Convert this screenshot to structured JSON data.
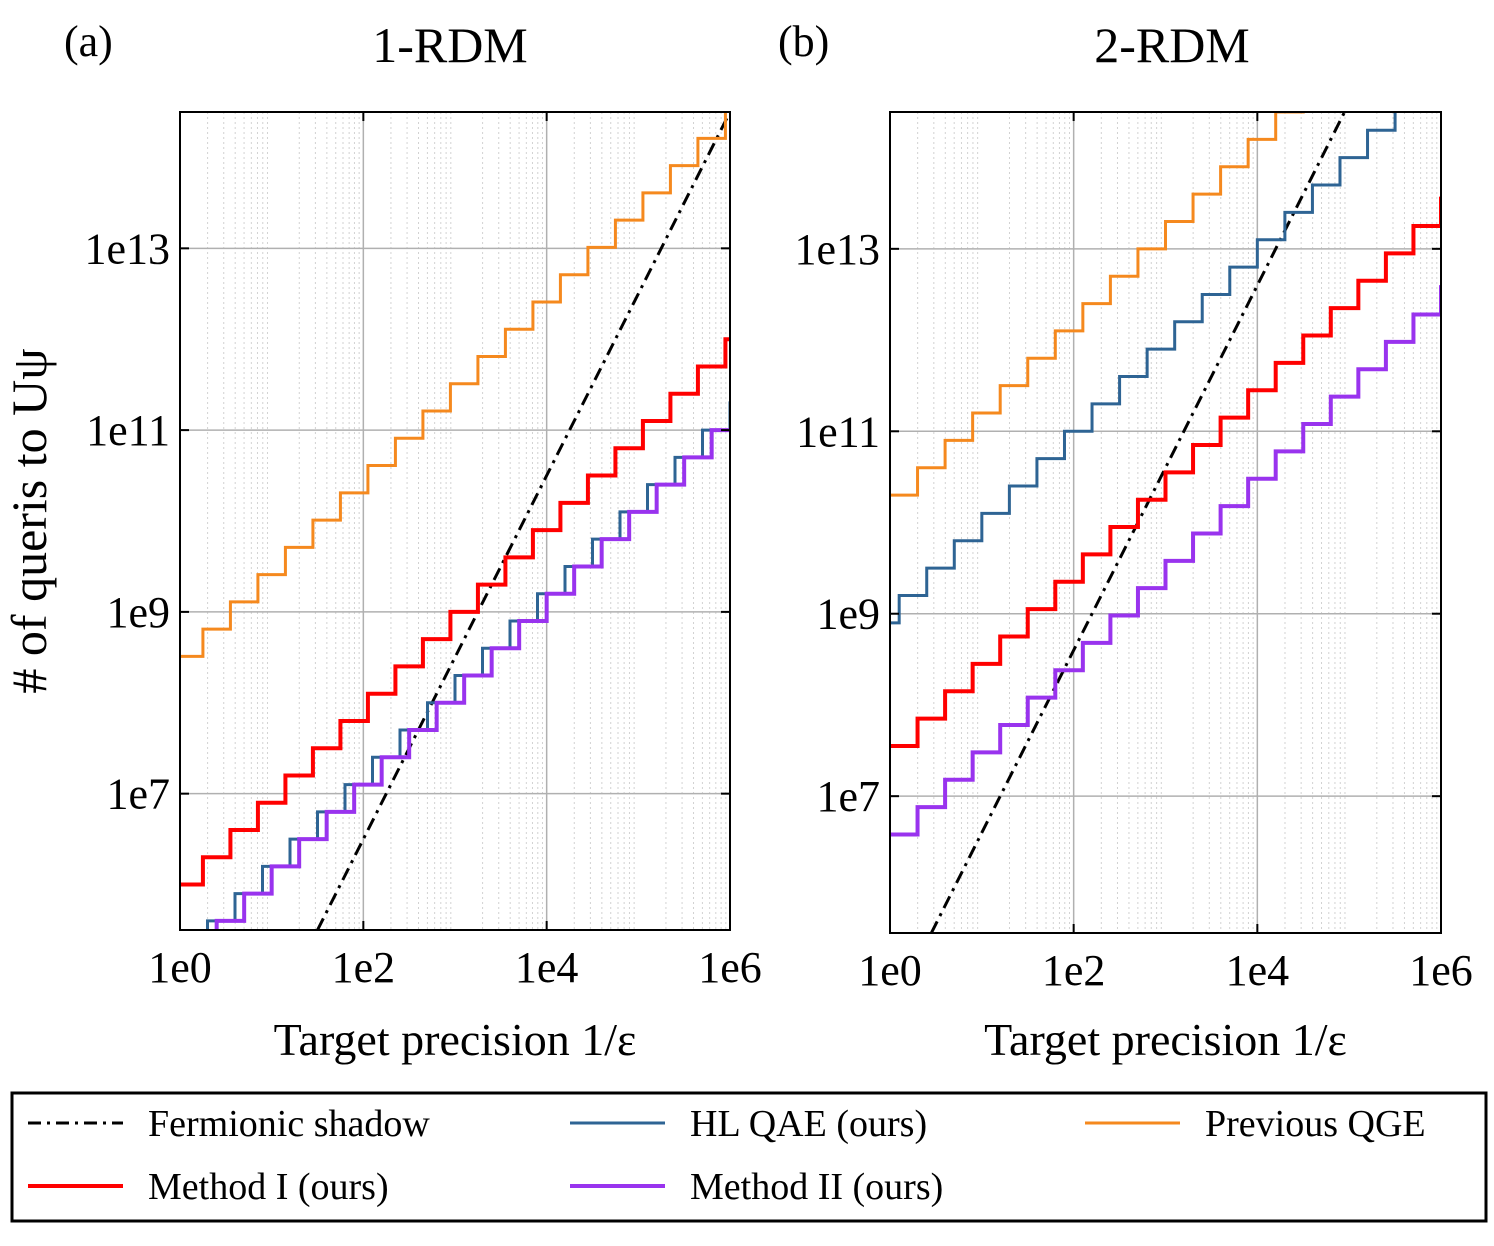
{
  "chart_data": [
    {
      "type": "line",
      "panel_label": "(a)",
      "title": "1-RDM",
      "xlabel": "Target precision 1/ε",
      "ylabel": "# of queris to Uψ",
      "xscale": "log",
      "yscale": "log",
      "xlim_log10": [
        0,
        6
      ],
      "ylim_log10": [
        5.5,
        14.5
      ],
      "xticks": [
        {
          "log": 0,
          "label": "1e0"
        },
        {
          "log": 2,
          "label": "1e2"
        },
        {
          "log": 4,
          "label": "1e4"
        },
        {
          "log": 6,
          "label": "1e6"
        }
      ],
      "yticks": [
        {
          "log": 7,
          "label": "1e7"
        },
        {
          "log": 9,
          "label": "1e9"
        },
        {
          "log": 11,
          "label": "1e11"
        },
        {
          "log": 13,
          "label": "1e13"
        }
      ],
      "grid": true,
      "series": [
        {
          "name": "Fermionic shadow",
          "kind": "dashdot",
          "color": "#000000",
          "slope": 2.0,
          "start_x_log": 1.5,
          "start_y_log": 5.5
        },
        {
          "name": "HL QAE (ours)",
          "kind": "step",
          "color": "#2e6494",
          "slope": 1.0,
          "y0_log": 5.3,
          "step_log": 0.3,
          "x_first_log": 0.3
        },
        {
          "name": "Previous QGE",
          "kind": "step",
          "color": "#f5891e",
          "slope": 1.0,
          "y0_log": 8.51,
          "step_log": 0.3,
          "x_first_log": 0.25
        },
        {
          "name": "Method I (ours)",
          "kind": "step",
          "color": "#ff0000",
          "slope": 1.0,
          "y0_log": 6.0,
          "step_log": 0.3,
          "x_first_log": 0.25
        },
        {
          "name": "Method II (ours)",
          "kind": "step",
          "color": "#9933ee",
          "slope": 1.0,
          "y0_log": 5.3,
          "step_log": 0.3,
          "x_first_log": 0.4
        }
      ]
    },
    {
      "type": "line",
      "panel_label": "(b)",
      "title": "2-RDM",
      "xlabel": "Target precision 1/ε",
      "ylabel": "",
      "xscale": "log",
      "yscale": "log",
      "xlim_log10": [
        0,
        6
      ],
      "ylim_log10": [
        5.5,
        14.5
      ],
      "xticks": [
        {
          "log": 0,
          "label": "1e0"
        },
        {
          "log": 2,
          "label": "1e2"
        },
        {
          "log": 4,
          "label": "1e4"
        },
        {
          "log": 6,
          "label": "1e6"
        }
      ],
      "yticks": [
        {
          "log": 7,
          "label": "1e7"
        },
        {
          "log": 9,
          "label": "1e9"
        },
        {
          "log": 11,
          "label": "1e11"
        },
        {
          "log": 13,
          "label": "1e13"
        }
      ],
      "grid": true,
      "series": [
        {
          "name": "Fermionic shadow",
          "kind": "dashdot",
          "color": "#000000",
          "slope": 2.0,
          "start_x_log": 0.45,
          "start_y_log": 5.5
        },
        {
          "name": "HL QAE (ours)",
          "kind": "step",
          "color": "#2e6494",
          "slope": 1.0,
          "y0_log": 8.9,
          "step_log": 0.3,
          "x_first_log": 0.1
        },
        {
          "name": "Previous QGE",
          "kind": "step",
          "color": "#f5891e",
          "slope": 1.0,
          "y0_log": 10.3,
          "step_log": 0.3,
          "x_first_log": 0.3
        },
        {
          "name": "Method I (ours)",
          "kind": "step",
          "color": "#ff0000",
          "slope": 1.0,
          "y0_log": 7.55,
          "step_log": 0.3,
          "x_first_log": 0.3
        },
        {
          "name": "Method II (ours)",
          "kind": "step",
          "color": "#9933ee",
          "slope": 1.0,
          "y0_log": 6.58,
          "step_log": 0.3,
          "x_first_log": 0.3
        }
      ]
    }
  ],
  "legend": {
    "placement": "bottom",
    "entries": [
      {
        "label": "Fermionic shadow",
        "color": "#000000",
        "style": "dashdot"
      },
      {
        "label": "HL QAE (ours)",
        "color": "#2e6494",
        "style": "solid"
      },
      {
        "label": "Previous QGE",
        "color": "#f5891e",
        "style": "solid"
      },
      {
        "label": "Method I (ours)",
        "color": "#ff0000",
        "style": "solid"
      },
      {
        "label": "Method II (ours)",
        "color": "#9933ee",
        "style": "solid"
      }
    ]
  }
}
